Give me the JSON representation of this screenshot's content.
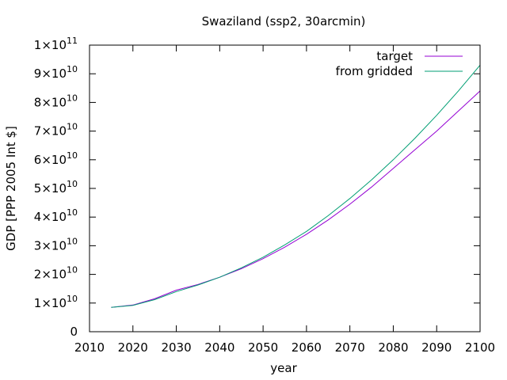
{
  "chart_data": {
    "type": "line",
    "title": "Swaziland (ssp2, 30arcmin)",
    "xlabel": "year",
    "ylabel": "GDP [PPP 2005 Int $]",
    "xlim": [
      2010,
      2100
    ],
    "ylim": [
      0,
      100000000000
    ],
    "x_ticks": [
      "2010",
      "2020",
      "2030",
      "2040",
      "2050",
      "2060",
      "2070",
      "2080",
      "2090",
      "2100"
    ],
    "y_ticks": [
      {
        "mantissa": "0",
        "exp": ""
      },
      {
        "mantissa": "1×10",
        "exp": "10"
      },
      {
        "mantissa": "2×10",
        "exp": "10"
      },
      {
        "mantissa": "3×10",
        "exp": "10"
      },
      {
        "mantissa": "4×10",
        "exp": "10"
      },
      {
        "mantissa": "5×10",
        "exp": "10"
      },
      {
        "mantissa": "6×10",
        "exp": "10"
      },
      {
        "mantissa": "7×10",
        "exp": "10"
      },
      {
        "mantissa": "8×10",
        "exp": "10"
      },
      {
        "mantissa": "9×10",
        "exp": "10"
      },
      {
        "mantissa": "1×10",
        "exp": "11"
      }
    ],
    "grid": false,
    "legend_position": "top-right",
    "series": [
      {
        "name": "target",
        "color": "#9400d3",
        "x": [
          2015,
          2020,
          2025,
          2030,
          2035,
          2040,
          2045,
          2050,
          2055,
          2060,
          2065,
          2070,
          2075,
          2080,
          2085,
          2090,
          2095,
          2100
        ],
        "y": [
          8500000000.0,
          9300000000.0,
          11500000000.0,
          14500000000.0,
          16500000000.0,
          19000000000.0,
          22000000000.0,
          25500000000.0,
          29500000000.0,
          34000000000.0,
          39000000000.0,
          44500000000.0,
          50500000000.0,
          57000000000.0,
          63500000000.0,
          70000000000.0,
          77000000000.0,
          84000000000.0
        ]
      },
      {
        "name": "from gridded",
        "color": "#009e73",
        "x": [
          2015,
          2020,
          2025,
          2030,
          2035,
          2040,
          2045,
          2050,
          2055,
          2060,
          2065,
          2070,
          2075,
          2080,
          2085,
          2090,
          2095,
          2100
        ],
        "y": [
          8500000000.0,
          9200000000.0,
          11200000000.0,
          14000000000.0,
          16300000000.0,
          19000000000.0,
          22300000000.0,
          26000000000.0,
          30300000000.0,
          35000000000.0,
          40500000000.0,
          46500000000.0,
          53000000000.0,
          60000000000.0,
          67500000000.0,
          75500000000.0,
          84000000000.0,
          93000000000.0
        ]
      }
    ]
  }
}
